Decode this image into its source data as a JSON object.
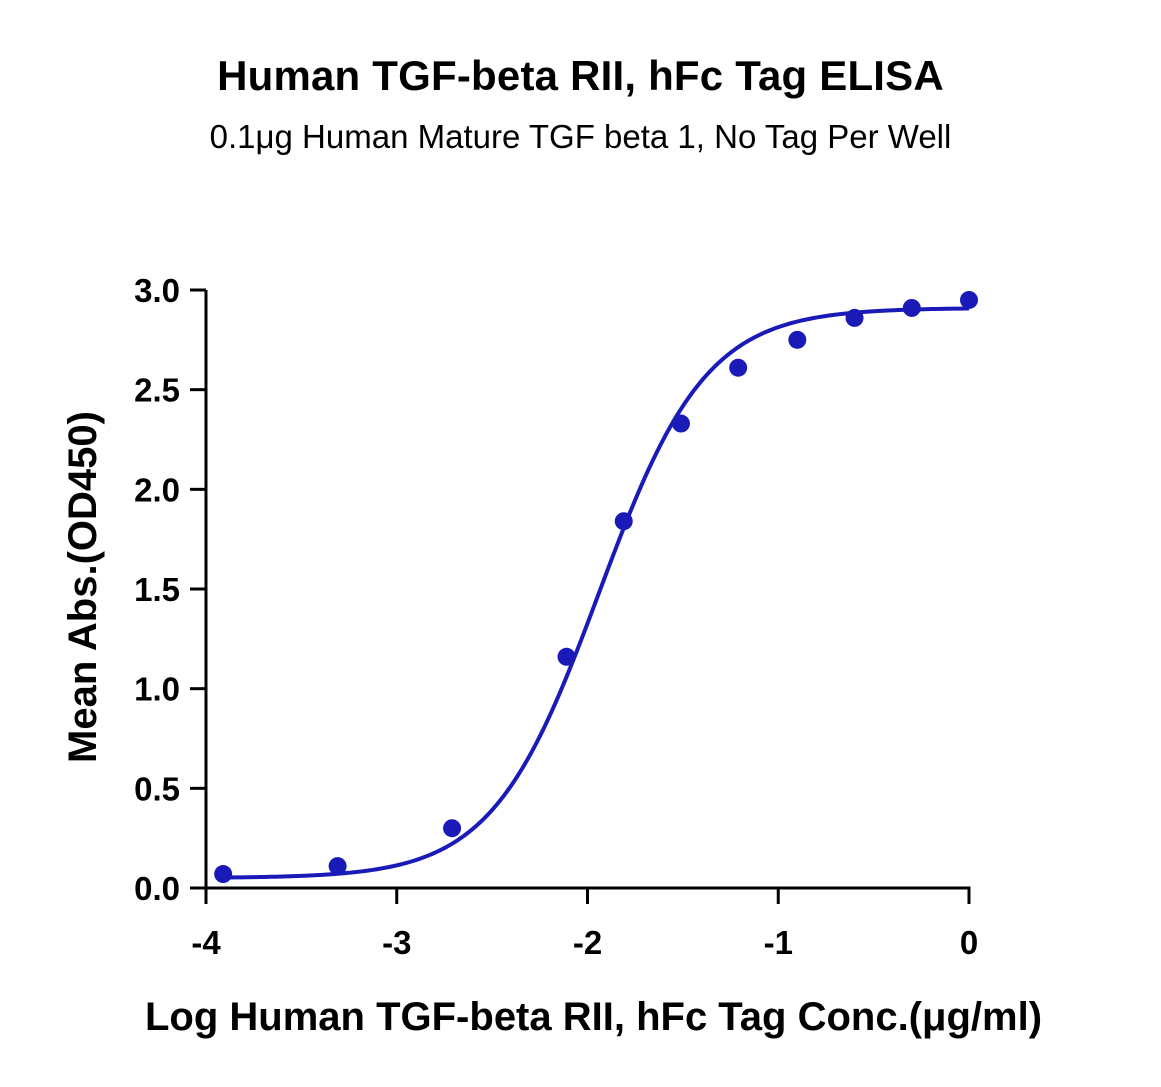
{
  "chart_data": {
    "type": "scatter",
    "title": "Human TGF-beta RII, hFc Tag ELISA",
    "subtitle": "0.1μg Human Mature TGF beta 1, No Tag Per Well",
    "xlabel": "Log Human TGF-beta RII, hFc Tag Conc.(μg/ml)",
    "ylabel": "Mean Abs.(OD450)",
    "xlim": [
      -4,
      0
    ],
    "ylim": [
      0,
      3.0
    ],
    "x_ticks": [
      -4,
      -3,
      -2,
      -1,
      0
    ],
    "x_tick_labels": [
      "-4",
      "-3",
      "-2",
      "-1",
      "0"
    ],
    "y_ticks": [
      0,
      0.5,
      1.0,
      1.5,
      2.0,
      2.5,
      3.0
    ],
    "y_tick_labels": [
      "0.0",
      "0.5",
      "1.0",
      "1.5",
      "2.0",
      "2.5",
      "3.0"
    ],
    "grid": false,
    "legend": "none",
    "series": [
      {
        "x": [
          -3.91,
          -3.31,
          -2.71,
          -2.11,
          -1.81,
          -1.51,
          -1.21,
          -0.9,
          -0.6,
          -0.3,
          0.0
        ],
        "y": [
          0.07,
          0.11,
          0.3,
          1.16,
          1.84,
          2.33,
          2.61,
          2.75,
          2.86,
          2.91,
          2.95
        ],
        "color": "#1a1ab8",
        "fit": {
          "model": "4PL",
          "bottom": 0.05,
          "top": 2.91,
          "log_ec50": -1.94,
          "hill": 1.55,
          "x_range": [
            -3.91,
            0.0
          ]
        }
      }
    ]
  }
}
